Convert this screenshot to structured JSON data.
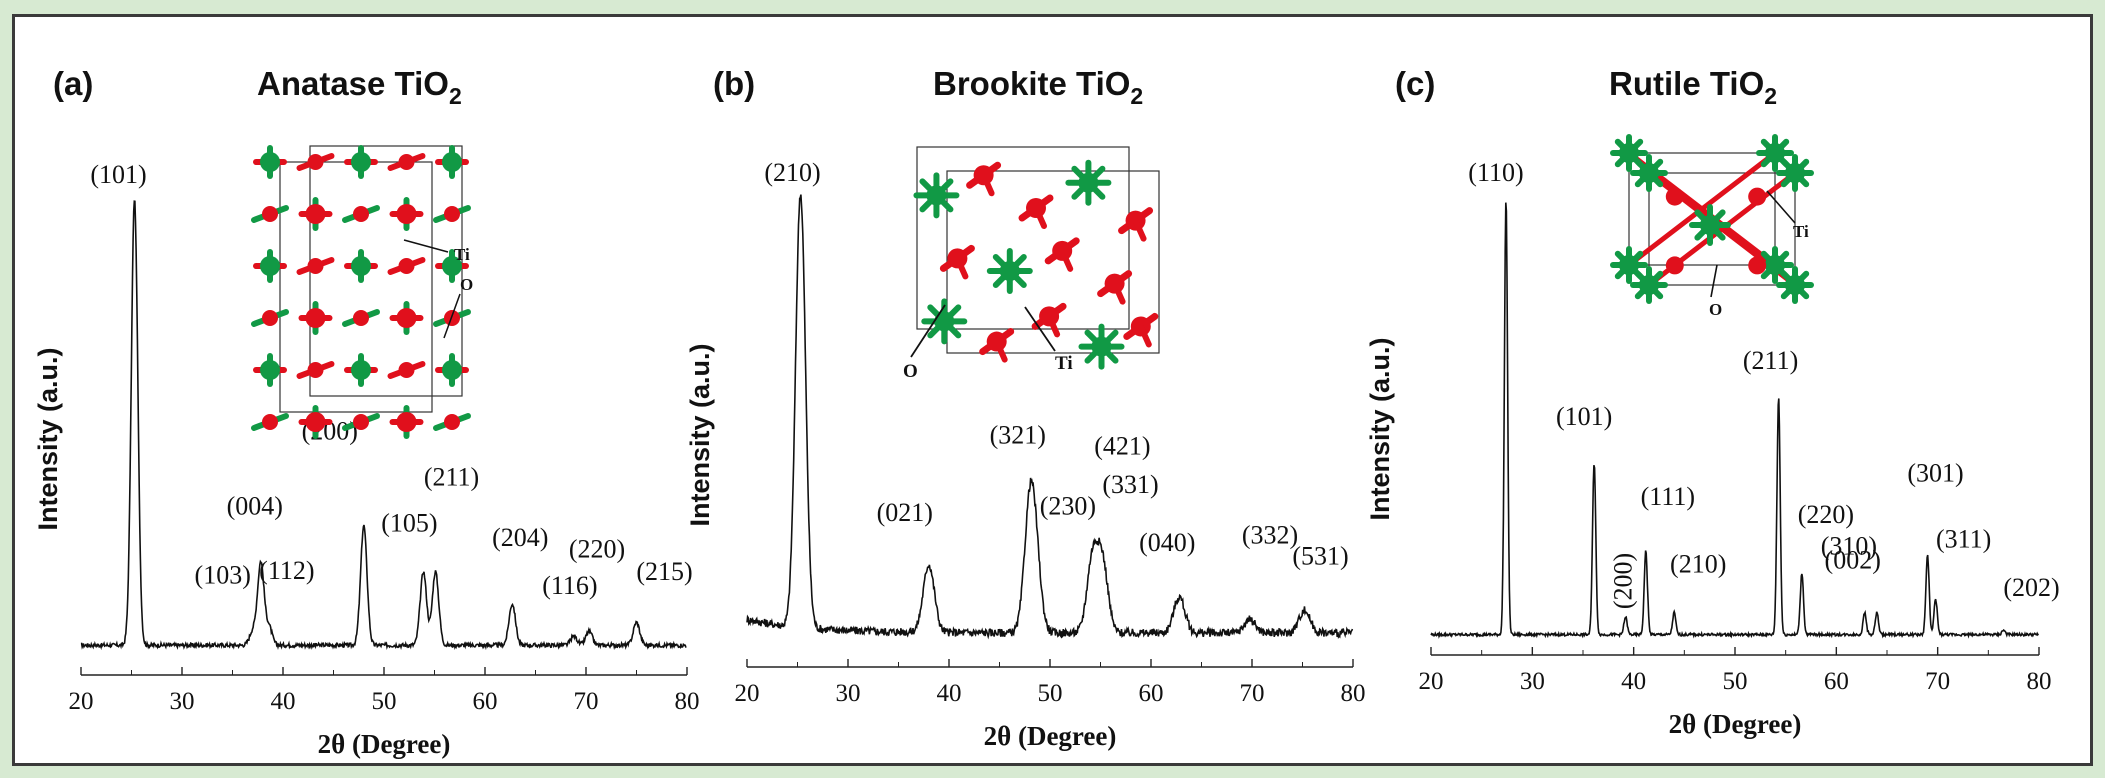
{
  "colors": {
    "ti": "#119945",
    "o": "#e0101c",
    "trace": "#111111",
    "background": "#d7ead2"
  },
  "chart_data": [
    {
      "type": "line",
      "panel_label": "(a)",
      "title": "Anatase TiO",
      "title_sub": "2",
      "xlabel": "2θ (Degree)",
      "ylabel": "Intensity (a.u.)",
      "xlim": [
        20,
        80
      ],
      "xticks": [
        20,
        30,
        40,
        50,
        60,
        70,
        80
      ],
      "ylim": [
        0,
        100
      ],
      "baseline": 3,
      "noise": 0.45,
      "peaks": [
        {
          "x": 25.3,
          "y": 100,
          "label": "(101)"
        },
        {
          "x": 37.0,
          "y": 6,
          "label": "(103)"
        },
        {
          "x": 37.8,
          "y": 21,
          "label": "(004)"
        },
        {
          "x": 38.6,
          "y": 7,
          "label": "(112)"
        },
        {
          "x": 48.0,
          "y": 29,
          "label": "(200)"
        },
        {
          "x": 53.9,
          "y": 19,
          "label": "(105)"
        },
        {
          "x": 55.1,
          "y": 19,
          "label": "(211)"
        },
        {
          "x": 62.7,
          "y": 12,
          "label": "(204)"
        },
        {
          "x": 68.8,
          "y": 5,
          "label": "(116)"
        },
        {
          "x": 70.3,
          "y": 6,
          "label": "(220)"
        },
        {
          "x": 75.0,
          "y": 8,
          "label": "(215)"
        }
      ],
      "inset_labels": {
        "ti": "Ti",
        "o": "O"
      }
    },
    {
      "type": "line",
      "panel_label": "(b)",
      "title": "Brookite TiO",
      "title_sub": "2",
      "xlabel": "2θ (Degree)",
      "ylabel": "Intensity (a.u.)",
      "xlim": [
        20,
        80
      ],
      "xticks": [
        20,
        30,
        40,
        50,
        60,
        70,
        80
      ],
      "ylim": [
        0,
        100
      ],
      "baseline": 4,
      "noise": 0.9,
      "peaks": [
        {
          "x": 25.3,
          "y": 100,
          "label": "(210)"
        },
        {
          "x": 38.0,
          "y": 19,
          "label": "(021)"
        },
        {
          "x": 48.0,
          "y": 30,
          "label": "(321)"
        },
        {
          "x": 48.6,
          "y": 16,
          "label": "(230)"
        },
        {
          "x": 54.2,
          "y": 20,
          "label": "(421)"
        },
        {
          "x": 55.2,
          "y": 19,
          "label": "(331)"
        },
        {
          "x": 62.8,
          "y": 12,
          "label": "(040)"
        },
        {
          "x": 69.8,
          "y": 7,
          "label": "(332)"
        },
        {
          "x": 75.2,
          "y": 9,
          "label": "(531)"
        }
      ],
      "inset_labels": {
        "ti": "Ti",
        "o": "O"
      }
    },
    {
      "type": "line",
      "panel_label": "(c)",
      "title": "Rutile TiO",
      "title_sub": "2",
      "xlabel": "2θ (Degree)",
      "ylabel": "Intensity (a.u.)",
      "xlim": [
        20,
        80
      ],
      "xticks": [
        20,
        30,
        40,
        50,
        60,
        70,
        80
      ],
      "ylim": [
        0,
        100
      ],
      "baseline": 1,
      "noise": 0.3,
      "peaks": [
        {
          "x": 27.4,
          "y": 100,
          "label": "(110)"
        },
        {
          "x": 36.1,
          "y": 40,
          "label": "(101)"
        },
        {
          "x": 39.2,
          "y": 5,
          "label": "(200)"
        },
        {
          "x": 41.2,
          "y": 20,
          "label": "(111)"
        },
        {
          "x": 44.0,
          "y": 6,
          "label": "(210)"
        },
        {
          "x": 54.3,
          "y": 55,
          "label": "(211)"
        },
        {
          "x": 56.6,
          "y": 15,
          "label": "(220)"
        },
        {
          "x": 62.8,
          "y": 6,
          "label": "(002)"
        },
        {
          "x": 64.0,
          "y": 6,
          "label": "(310)"
        },
        {
          "x": 69.0,
          "y": 19,
          "label": "(301)"
        },
        {
          "x": 69.8,
          "y": 9,
          "label": "(311)"
        },
        {
          "x": 76.5,
          "y": 2,
          "label": "(202)"
        }
      ],
      "inset_labels": {
        "ti": "Ti",
        "o": "O"
      }
    }
  ]
}
